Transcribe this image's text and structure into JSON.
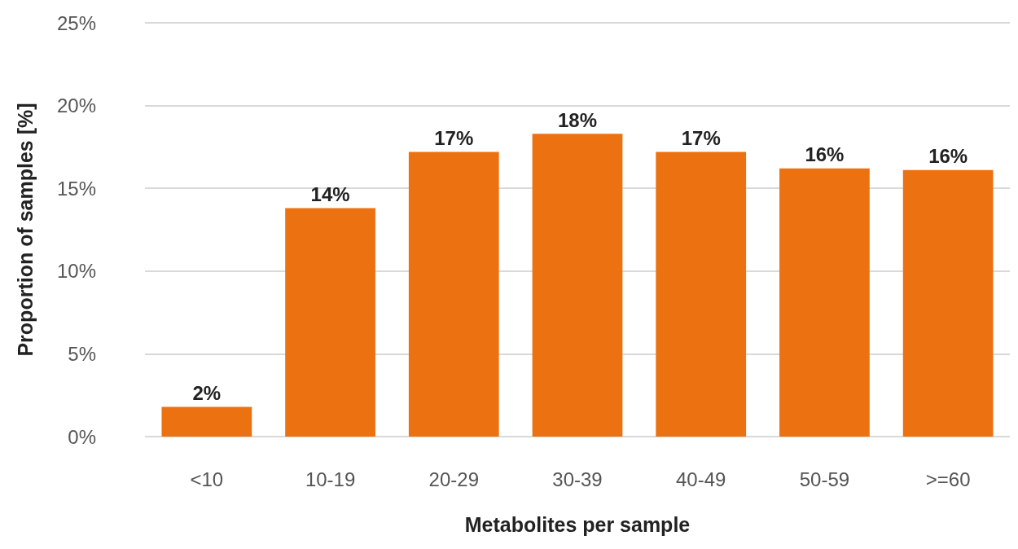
{
  "chart_data": {
    "type": "bar",
    "xlabel": "Metabolites per sample",
    "ylabel": "Proportion of samples [%]",
    "categories": [
      "<10",
      "10-19",
      "20-29",
      "30-39",
      "40-49",
      "50-59",
      ">=60"
    ],
    "values": [
      1.8,
      13.8,
      17.2,
      18.3,
      17.2,
      16.2,
      16.1
    ],
    "value_labels": [
      "2%",
      "14%",
      "17%",
      "18%",
      "17%",
      "16%",
      "16%"
    ],
    "color": "#ec7211",
    "ylim": [
      0,
      25
    ],
    "yticks": [
      {
        "value": 0,
        "label": "0%"
      },
      {
        "value": 5,
        "label": "5%"
      },
      {
        "value": 10,
        "label": "10%"
      },
      {
        "value": 15,
        "label": "15%"
      },
      {
        "value": 20,
        "label": "20%"
      },
      {
        "value": 25,
        "label": "25%"
      }
    ],
    "grid": "y"
  }
}
